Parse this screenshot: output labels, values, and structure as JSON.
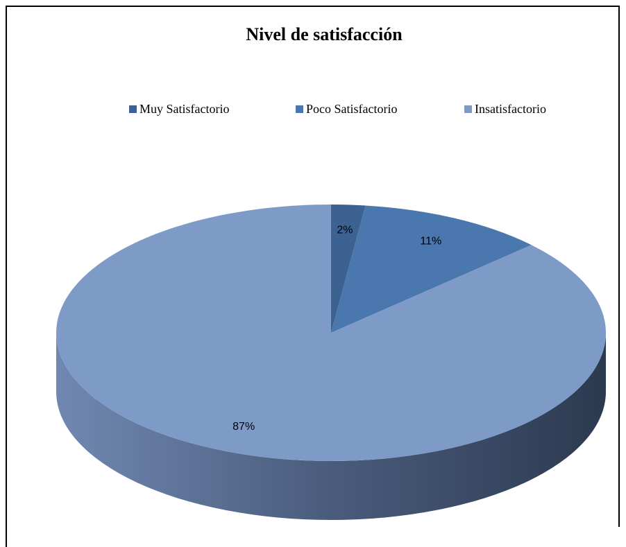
{
  "chart_data": {
    "type": "pie",
    "title": "Nivel de satisfacción",
    "categories": [
      "Muy Satisfactorio",
      "Poco Satisfactorio",
      "Insatisfactorio"
    ],
    "values": [
      2,
      11,
      87
    ],
    "value_labels": [
      "2%",
      "11%",
      "87%"
    ],
    "colors": [
      "#3c6291",
      "#4a77ae",
      "#7e9bc8"
    ],
    "legend": "top"
  }
}
